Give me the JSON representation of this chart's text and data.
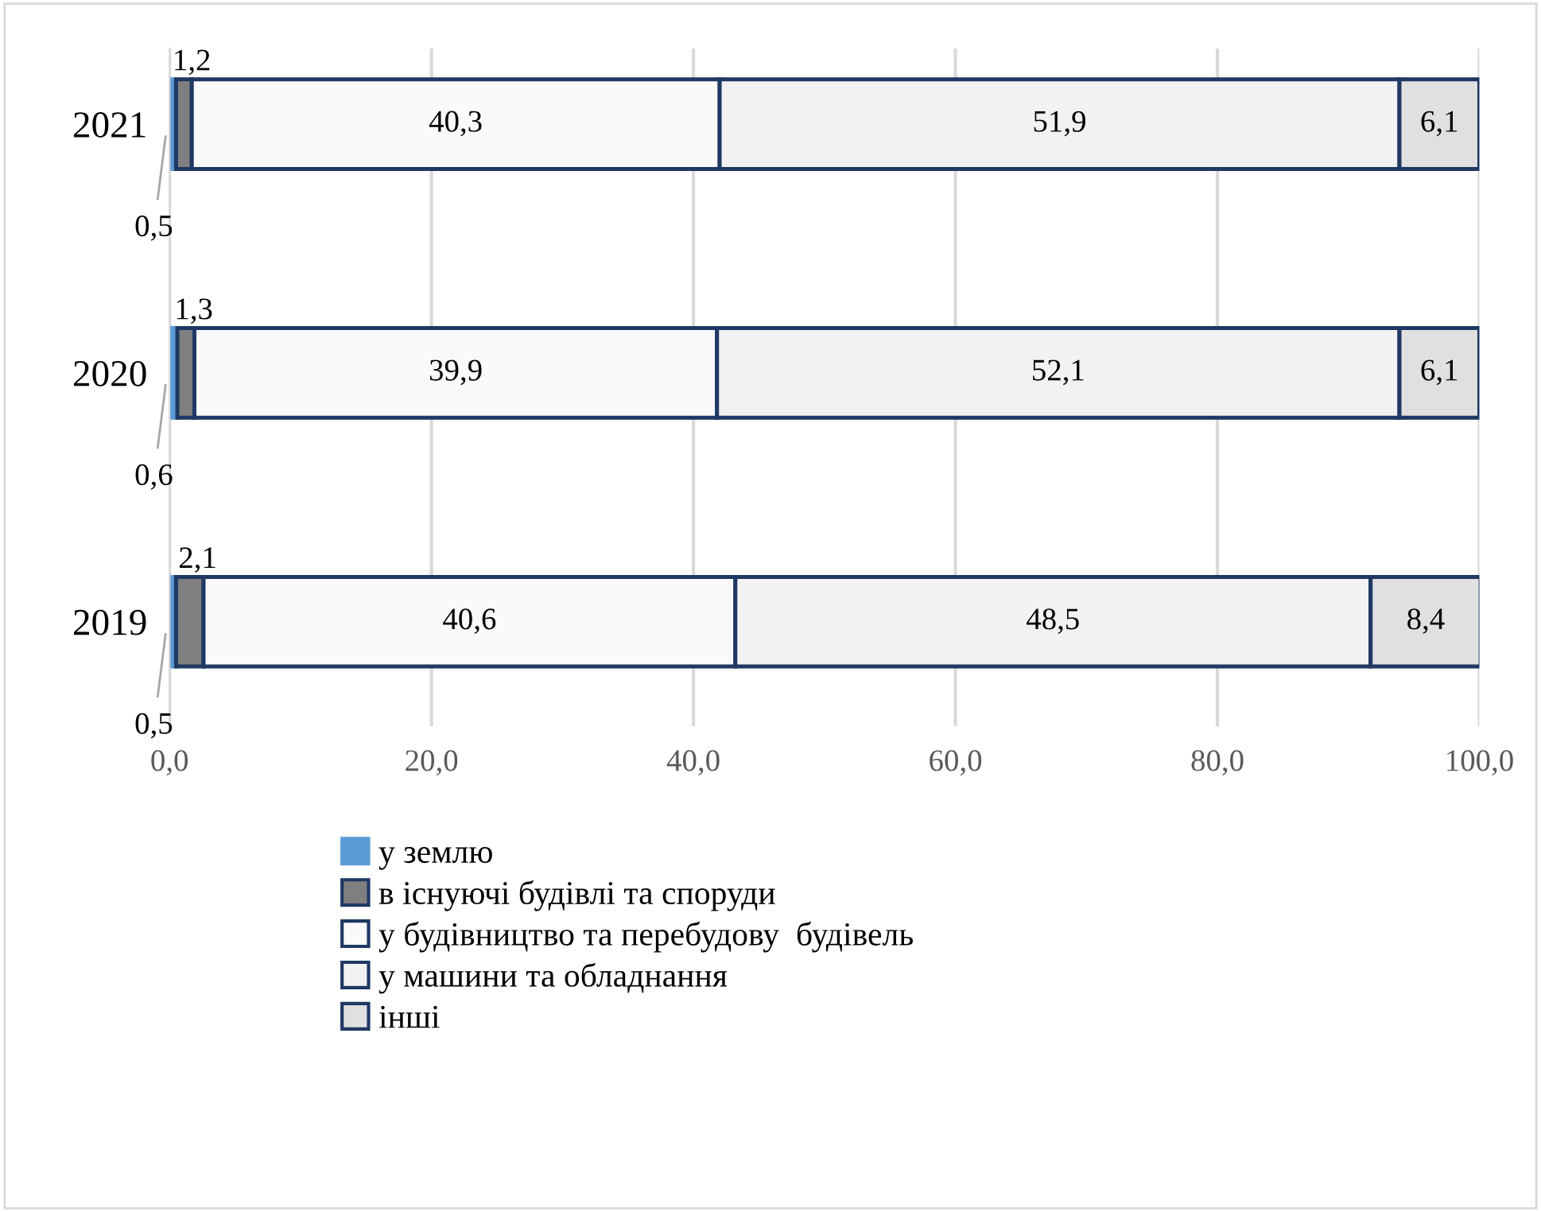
{
  "chart_data": {
    "type": "bar",
    "orientation": "horizontal",
    "stacked": true,
    "categories": [
      "2021",
      "2020",
      "2019"
    ],
    "series": [
      {
        "name": "у землю",
        "color": "#5b9bd5",
        "values": [
          0.5,
          0.6,
          0.5
        ],
        "value_labels": [
          "0,5",
          "0,6",
          "0,5"
        ]
      },
      {
        "name": "в існуючі будівлі та споруди",
        "color": "#7f7f7f",
        "values": [
          1.2,
          1.3,
          2.1
        ],
        "value_labels": [
          "1,2",
          "1,3",
          "2,1"
        ]
      },
      {
        "name": "у будівництво та перебудову  будівель",
        "color": "#fafafa",
        "values": [
          40.3,
          39.9,
          40.6
        ],
        "value_labels": [
          "40,3",
          "39,9",
          "40,6"
        ]
      },
      {
        "name": "у машини та обладнання",
        "color": "#f2f2f2",
        "values": [
          51.9,
          52.1,
          48.5
        ],
        "value_labels": [
          "51,9",
          "52,1",
          "48,5"
        ]
      },
      {
        "name": "інші",
        "color": "#e0e0e0",
        "values": [
          6.1,
          6.1,
          8.4
        ],
        "value_labels": [
          "6,1",
          "6,1",
          "8,4"
        ]
      }
    ],
    "xlim": [
      0,
      100
    ],
    "xticks": [
      {
        "value": 0,
        "label": "0,0"
      },
      {
        "value": 20,
        "label": "20,0"
      },
      {
        "value": 40,
        "label": "40,0"
      },
      {
        "value": 60,
        "label": "60,0"
      },
      {
        "value": 80,
        "label": "80,0"
      },
      {
        "value": 100,
        "label": "100,0"
      }
    ],
    "grid": "x",
    "legend": "bottom"
  }
}
